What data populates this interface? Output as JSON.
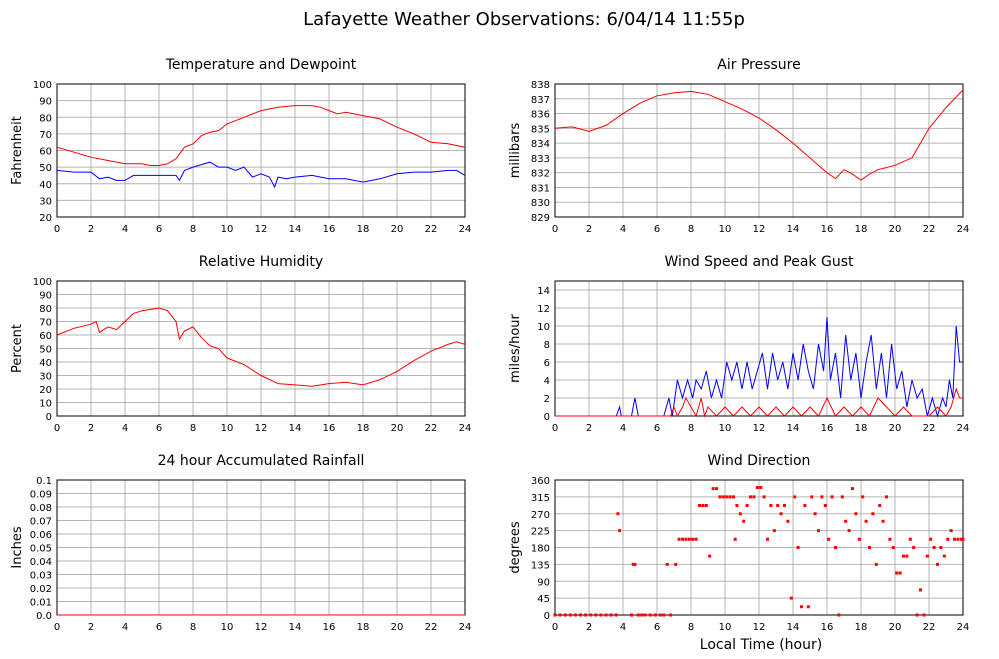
{
  "title": "Lafayette Weather Observations: 6/04/14 11:55p",
  "xlabel": "Local Time (hour)",
  "colors": {
    "red": "#ff0000",
    "blue": "#0000ff",
    "grid": "#b4b4b4",
    "axis": "#000000"
  },
  "chart_data": [
    {
      "id": "temp",
      "type": "line",
      "title": "Temperature and Dewpoint",
      "ylabel": "Fahrenheit",
      "xlim": [
        0,
        24
      ],
      "ylim": [
        20,
        100
      ],
      "xticks": [
        0,
        2,
        4,
        6,
        8,
        10,
        12,
        14,
        16,
        18,
        20,
        22,
        24
      ],
      "yticks": [
        "20",
        "30",
        "40",
        "50",
        "60",
        "70",
        "80",
        "90",
        "100"
      ],
      "series": [
        {
          "color": "#ff0000",
          "x": [
            0,
            1,
            2,
            3,
            4,
            5,
            5.5,
            6,
            6.5,
            7,
            7.5,
            8,
            8.5,
            9,
            9.5,
            10,
            11,
            12,
            13,
            14,
            15,
            15.5,
            16,
            16.5,
            17,
            18,
            19,
            20,
            21,
            22,
            23,
            24
          ],
          "y": [
            62,
            59,
            56,
            54,
            52,
            52,
            51,
            51,
            52,
            55,
            62,
            64,
            69,
            71,
            72,
            76,
            80,
            84,
            86,
            87,
            87,
            86,
            84,
            82,
            83,
            81,
            79,
            74,
            70,
            65,
            64,
            62
          ]
        },
        {
          "color": "#0000ff",
          "x": [
            0,
            1,
            2,
            2.5,
            3,
            3.5,
            4,
            4.5,
            5,
            6,
            7,
            7.2,
            7.5,
            8,
            9,
            9.5,
            10,
            10.5,
            11,
            11.5,
            12,
            12.5,
            12.8,
            13,
            13.5,
            14,
            15,
            16,
            17,
            18,
            19,
            20,
            21,
            22,
            23,
            23.5,
            24
          ],
          "y": [
            48,
            47,
            47,
            43,
            44,
            42,
            42,
            45,
            45,
            45,
            45,
            42,
            48,
            50,
            53,
            50,
            50,
            48,
            50,
            44,
            46,
            44,
            38,
            44,
            43,
            44,
            45,
            43,
            43,
            41,
            43,
            46,
            47,
            47,
            48,
            48,
            45
          ]
        }
      ]
    },
    {
      "id": "pressure",
      "type": "line",
      "title": "Air Pressure",
      "ylabel": "millibars",
      "xlim": [
        0,
        24
      ],
      "ylim": [
        829,
        838
      ],
      "xticks": [
        0,
        2,
        4,
        6,
        8,
        10,
        12,
        14,
        16,
        18,
        20,
        22,
        24
      ],
      "yticks": [
        "829",
        "830",
        "831",
        "832",
        "833",
        "834",
        "835",
        "836",
        "837",
        "838"
      ],
      "series": [
        {
          "color": "#ff0000",
          "x": [
            0,
            1,
            2,
            3,
            4,
            5,
            6,
            7,
            8,
            9,
            10,
            11,
            12,
            13,
            14,
            15,
            16,
            16.5,
            17,
            17.5,
            18,
            18.5,
            19,
            20,
            21,
            21.5,
            22,
            23,
            24
          ],
          "y": [
            835.0,
            835.1,
            834.8,
            835.2,
            836.0,
            836.7,
            837.2,
            837.4,
            837.5,
            837.3,
            836.8,
            836.3,
            835.7,
            834.9,
            834.0,
            833.0,
            832.0,
            831.6,
            832.2,
            831.9,
            831.5,
            831.9,
            832.2,
            832.5,
            833.0,
            834.0,
            835.0,
            836.4,
            837.6
          ]
        }
      ]
    },
    {
      "id": "humidity",
      "type": "line",
      "title": "Relative Humidity",
      "ylabel": "Percent",
      "xlim": [
        0,
        24
      ],
      "ylim": [
        0,
        100
      ],
      "xticks": [
        0,
        2,
        4,
        6,
        8,
        10,
        12,
        14,
        16,
        18,
        20,
        22,
        24
      ],
      "yticks": [
        "0",
        "10",
        "20",
        "30",
        "40",
        "50",
        "60",
        "70",
        "80",
        "90",
        "100"
      ],
      "series": [
        {
          "color": "#ff0000",
          "x": [
            0,
            1,
            2,
            2.3,
            2.5,
            3,
            3.5,
            4,
            4.5,
            5,
            6,
            6.5,
            7,
            7.2,
            7.5,
            8,
            8.5,
            9,
            9.5,
            10,
            11,
            12,
            13,
            14,
            15,
            16,
            17,
            18,
            19,
            20,
            21,
            22,
            23,
            23.5,
            24
          ],
          "y": [
            60,
            65,
            68,
            70,
            62,
            66,
            64,
            70,
            76,
            78,
            80,
            78,
            70,
            57,
            63,
            66,
            58,
            52,
            50,
            43,
            38,
            30,
            24,
            23,
            22,
            24,
            25,
            23,
            27,
            33,
            41,
            48,
            53,
            55,
            53
          ]
        }
      ]
    },
    {
      "id": "wind",
      "type": "line",
      "title": "Wind Speed and Peak Gust",
      "ylabel": "miles/hour",
      "xlim": [
        0,
        24
      ],
      "ylim": [
        0,
        15
      ],
      "xticks": [
        0,
        2,
        4,
        6,
        8,
        10,
        12,
        14,
        16,
        18,
        20,
        22,
        24
      ],
      "yticks": [
        "0",
        "2",
        "4",
        "6",
        "8",
        "10",
        "12",
        "14"
      ],
      "series": [
        {
          "color": "#0000ff",
          "x": [
            0,
            3.6,
            3.8,
            3.9,
            4.5,
            4.7,
            4.9,
            6.4,
            6.7,
            6.9,
            7.2,
            7.5,
            7.8,
            8.1,
            8.3,
            8.6,
            8.9,
            9.2,
            9.5,
            9.8,
            10.1,
            10.4,
            10.7,
            11.0,
            11.3,
            11.6,
            11.9,
            12.2,
            12.5,
            12.8,
            13.1,
            13.4,
            13.7,
            14.0,
            14.3,
            14.6,
            14.9,
            15.2,
            15.5,
            15.8,
            16.0,
            16.2,
            16.5,
            16.8,
            17.1,
            17.4,
            17.7,
            18.0,
            18.3,
            18.6,
            18.9,
            19.2,
            19.5,
            19.8,
            20.1,
            20.4,
            20.7,
            21.0,
            21.3,
            21.6,
            21.9,
            22.2,
            22.5,
            22.8,
            23.0,
            23.2,
            23.4,
            23.6,
            23.8,
            24.0
          ],
          "y": [
            0,
            0,
            1,
            0,
            0,
            2,
            0,
            0,
            2,
            0,
            4,
            2,
            4,
            2,
            4,
            3,
            5,
            2,
            4,
            2,
            6,
            4,
            6,
            3,
            6,
            3,
            5,
            7,
            3,
            7,
            4,
            6,
            3,
            7,
            4,
            8,
            5,
            3,
            8,
            5,
            11,
            4,
            7,
            2,
            9,
            4,
            7,
            2,
            6,
            9,
            3,
            7,
            2,
            8,
            3,
            5,
            1,
            4,
            2,
            3,
            0,
            2,
            0,
            2,
            1,
            4,
            2,
            10,
            6,
            6
          ]
        },
        {
          "color": "#ff0000",
          "x": [
            0,
            6.8,
            7.0,
            7.2,
            7.5,
            7.7,
            8.0,
            8.3,
            8.6,
            8.8,
            9.0,
            9.5,
            10.0,
            10.5,
            11.0,
            11.5,
            12.0,
            12.5,
            13.0,
            13.5,
            14.0,
            14.5,
            15.0,
            15.5,
            16.0,
            16.5,
            17.0,
            17.5,
            18.0,
            18.5,
            19.0,
            19.5,
            20.0,
            20.5,
            21.0,
            21.5,
            22.0,
            22.5,
            23.0,
            23.3,
            23.6,
            23.8,
            24.0
          ],
          "y": [
            0,
            0,
            1,
            0,
            1,
            2,
            1,
            0,
            2,
            0,
            1,
            0,
            1,
            0,
            1,
            0,
            1,
            0,
            1,
            0,
            1,
            0,
            1,
            0,
            2,
            0,
            1,
            0,
            1,
            0,
            2,
            1,
            0,
            1,
            0,
            0,
            0,
            1,
            0,
            1,
            3,
            2,
            2
          ]
        }
      ]
    },
    {
      "id": "rain",
      "type": "line",
      "title": "24 hour Accumulated Rainfall",
      "ylabel": "Inches",
      "xlim": [
        0,
        24
      ],
      "ylim": [
        0,
        0.1
      ],
      "xticks": [
        0,
        2,
        4,
        6,
        8,
        10,
        12,
        14,
        16,
        18,
        20,
        22,
        24
      ],
      "yticks": [
        "0.0",
        "0.01",
        "0.02",
        "0.03",
        "0.04",
        "0.05",
        "0.06",
        "0.07",
        "0.08",
        "0.09",
        "0.1"
      ],
      "series": [
        {
          "color": "#ff0000",
          "x": [
            0,
            24
          ],
          "y": [
            0,
            0
          ]
        }
      ]
    },
    {
      "id": "direction",
      "type": "scatter",
      "title": "Wind Direction",
      "ylabel": "degrees",
      "xlim": [
        0,
        24
      ],
      "ylim": [
        0,
        360
      ],
      "xticks": [
        0,
        2,
        4,
        6,
        8,
        10,
        12,
        14,
        16,
        18,
        20,
        22,
        24
      ],
      "yticks": [
        "0",
        "45",
        "90",
        "135",
        "180",
        "225",
        "270",
        "315",
        "360"
      ],
      "series": [
        {
          "color": "#ff0000",
          "x": [
            0.0,
            0.3,
            0.6,
            0.9,
            1.2,
            1.5,
            1.8,
            2.1,
            2.4,
            2.7,
            3.0,
            3.3,
            3.6,
            3.7,
            3.8,
            4.5,
            4.6,
            4.7,
            4.9,
            5.1,
            5.3,
            5.6,
            5.9,
            6.2,
            6.4,
            6.6,
            6.8,
            7.1,
            7.3,
            7.5,
            7.7,
            7.9,
            8.1,
            8.3,
            8.5,
            8.7,
            8.9,
            9.1,
            9.3,
            9.5,
            9.7,
            9.9,
            10.1,
            10.3,
            10.5,
            10.6,
            10.7,
            10.9,
            11.1,
            11.3,
            11.5,
            11.7,
            11.9,
            12.1,
            12.3,
            12.5,
            12.7,
            12.9,
            13.1,
            13.3,
            13.5,
            13.7,
            13.9,
            14.1,
            14.3,
            14.5,
            14.7,
            14.9,
            15.1,
            15.3,
            15.5,
            15.7,
            15.9,
            16.1,
            16.3,
            16.5,
            16.7,
            16.9,
            17.1,
            17.3,
            17.5,
            17.7,
            17.9,
            18.1,
            18.3,
            18.5,
            18.7,
            18.9,
            19.1,
            19.3,
            19.5,
            19.7,
            19.9,
            20.1,
            20.3,
            20.5,
            20.7,
            20.9,
            21.1,
            21.3,
            21.5,
            21.7,
            21.9,
            22.1,
            22.3,
            22.5,
            22.7,
            22.9,
            23.1,
            23.3,
            23.5,
            23.7,
            23.9,
            24.0
          ],
          "y": [
            0,
            0,
            0,
            0,
            0,
            0,
            0,
            0,
            0,
            0,
            0,
            0,
            0,
            270,
            225,
            0,
            135,
            135,
            0,
            0,
            0,
            0,
            0,
            0,
            0,
            135,
            0,
            135,
            202,
            202,
            202,
            202,
            202,
            202,
            292,
            292,
            292,
            157,
            337,
            337,
            315,
            315,
            315,
            315,
            315,
            202,
            292,
            270,
            250,
            292,
            315,
            315,
            340,
            340,
            315,
            202,
            292,
            225,
            292,
            270,
            292,
            250,
            45,
            315,
            180,
            22,
            292,
            22,
            315,
            270,
            225,
            315,
            292,
            202,
            315,
            180,
            0,
            315,
            250,
            225,
            337,
            270,
            202,
            315,
            250,
            180,
            270,
            135,
            292,
            250,
            315,
            202,
            180,
            112,
            112,
            157,
            157,
            202,
            180,
            0,
            67,
            0,
            157,
            202,
            180,
            135,
            180,
            157,
            202,
            225,
            202,
            202,
            202,
            202
          ]
        }
      ]
    }
  ]
}
